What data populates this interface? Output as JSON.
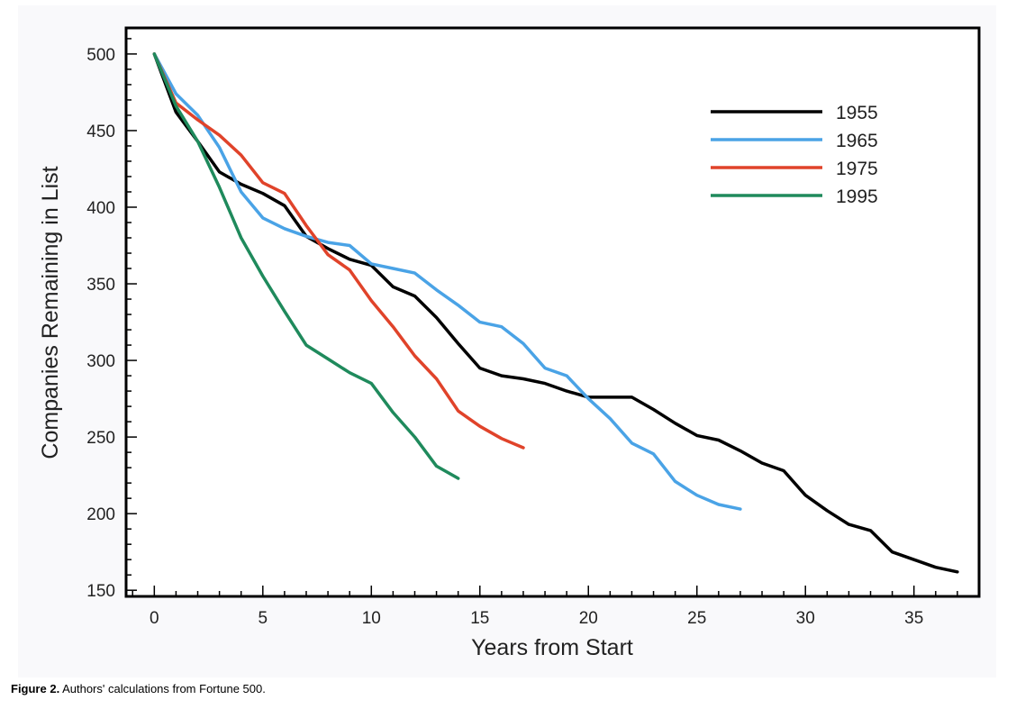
{
  "chart_data": {
    "type": "line",
    "title": "",
    "xlabel": "Years from Start",
    "ylabel": "Companies Remaining in List",
    "xlim": [
      -1.3,
      38
    ],
    "ylim": [
      146,
      517
    ],
    "xticks": [
      0,
      5,
      10,
      15,
      20,
      25,
      30,
      35
    ],
    "yticks": [
      150,
      200,
      250,
      300,
      350,
      400,
      450,
      500
    ],
    "grid": false,
    "legend_position": "top-right",
    "series": [
      {
        "name": "1955",
        "color": "#000000",
        "x": [
          0,
          1,
          2,
          3,
          4,
          5,
          6,
          7,
          8,
          9,
          10,
          11,
          12,
          13,
          14,
          15,
          16,
          17,
          18,
          19,
          20,
          21,
          22,
          23,
          24,
          25,
          26,
          27,
          28,
          29,
          30,
          31,
          32,
          33,
          34,
          35,
          36,
          37
        ],
        "y": [
          500,
          462,
          443,
          423,
          415,
          409,
          401,
          381,
          373,
          366,
          362,
          348,
          342,
          328,
          311,
          295,
          290,
          288,
          285,
          280,
          276,
          276,
          276,
          268,
          259,
          251,
          248,
          241,
          233,
          228,
          212,
          202,
          193,
          189,
          175,
          170,
          165,
          162
        ]
      },
      {
        "name": "1965",
        "color": "#4aa3e6",
        "x": [
          0,
          1,
          2,
          3,
          4,
          5,
          6,
          7,
          8,
          9,
          10,
          11,
          12,
          13,
          14,
          15,
          16,
          17,
          18,
          19,
          20,
          21,
          22,
          23,
          24,
          25,
          26,
          27
        ],
        "y": [
          500,
          474,
          460,
          439,
          410,
          393,
          386,
          381,
          377,
          375,
          363,
          360,
          357,
          346,
          336,
          325,
          322,
          311,
          295,
          290,
          275,
          262,
          246,
          239,
          221,
          212,
          206,
          203
        ]
      },
      {
        "name": "1975",
        "color": "#e0432a",
        "x": [
          0,
          1,
          2,
          3,
          4,
          5,
          6,
          7,
          8,
          9,
          10,
          11,
          12,
          13,
          14,
          15,
          16,
          17
        ],
        "y": [
          500,
          468,
          457,
          447,
          434,
          416,
          409,
          388,
          369,
          359,
          339,
          322,
          303,
          288,
          267,
          257,
          249,
          243
        ]
      },
      {
        "name": "1995",
        "color": "#1f8a5c",
        "x": [
          0,
          1,
          2,
          3,
          4,
          5,
          6,
          7,
          8,
          9,
          10,
          11,
          12,
          13,
          14
        ],
        "y": [
          500,
          466,
          443,
          413,
          380,
          355,
          332,
          310,
          301,
          292,
          285,
          266,
          250,
          231,
          223
        ]
      }
    ]
  },
  "caption": {
    "label": "Figure 2.",
    "text": " Authors' calculations from Fortune 500."
  }
}
